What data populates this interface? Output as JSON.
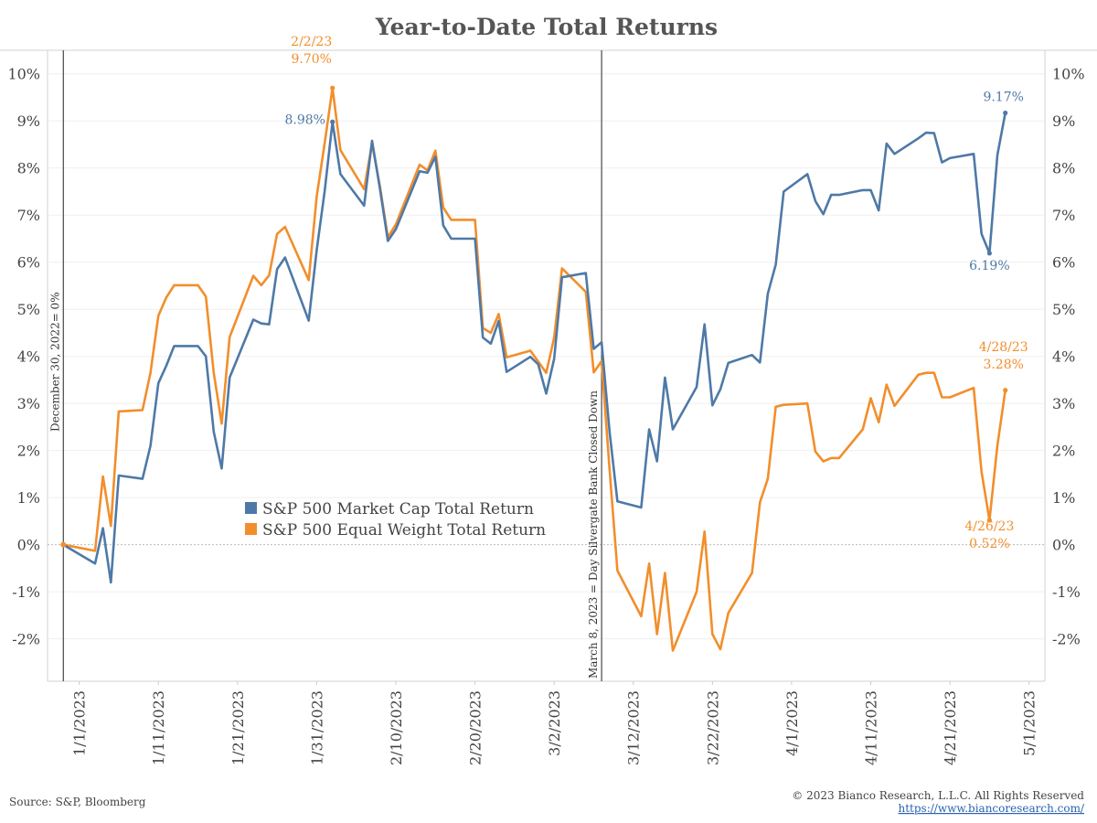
{
  "title": "Year-to-Date Total Returns",
  "source": "Source: S&P, Bloomberg",
  "copyright": "© 2023 Bianco Research, L.L.C. All Rights Reserved",
  "website": "https://www.biancoresearch.com/",
  "colors": {
    "blue": "#4e79a7",
    "orange": "#f28e2b"
  },
  "chart_data": {
    "type": "line",
    "x_axis": {
      "type": "date",
      "range": [
        "2022-12-28",
        "2023-05-03"
      ],
      "ticks": [
        "2023-01-01",
        "2023-01-11",
        "2023-01-21",
        "2023-01-31",
        "2023-02-10",
        "2023-02-20",
        "2023-03-02",
        "2023-03-12",
        "2023-03-22",
        "2023-04-01",
        "2023-04-11",
        "2023-04-21",
        "2023-05-01"
      ],
      "tick_labels": [
        "1/1/2023",
        "1/11/2023",
        "1/21/2023",
        "1/31/2023",
        "2/10/2023",
        "2/20/2023",
        "3/2/2023",
        "3/12/2023",
        "3/22/2023",
        "4/1/2023",
        "4/11/2023",
        "4/21/2023",
        "5/1/2023"
      ]
    },
    "y_axis": {
      "range": [
        -2.9,
        10.5
      ],
      "ticks": [
        -2,
        -1,
        0,
        1,
        2,
        3,
        4,
        5,
        6,
        7,
        8,
        9,
        10
      ],
      "tick_labels": [
        "-2%",
        "-1%",
        "0%",
        "1%",
        "2%",
        "3%",
        "4%",
        "5%",
        "6%",
        "7%",
        "8%",
        "9%",
        "10%"
      ],
      "sides": "both"
    },
    "grid": true,
    "legend": {
      "position": "center-left"
    },
    "series": [
      {
        "name": "S&P 500 Market Cap Total Return",
        "color": "#4e79a7",
        "points": [
          [
            "2022-12-30",
            0.0
          ],
          [
            "2023-01-03",
            -0.4
          ],
          [
            "2023-01-04",
            0.35
          ],
          [
            "2023-01-05",
            -0.8
          ],
          [
            "2023-01-06",
            1.47
          ],
          [
            "2023-01-09",
            1.4
          ],
          [
            "2023-01-10",
            2.1
          ],
          [
            "2023-01-11",
            3.43
          ],
          [
            "2023-01-12",
            3.8
          ],
          [
            "2023-01-13",
            4.22
          ],
          [
            "2023-01-16",
            4.22
          ],
          [
            "2023-01-17",
            4.0
          ],
          [
            "2023-01-18",
            2.4
          ],
          [
            "2023-01-19",
            1.62
          ],
          [
            "2023-01-20",
            3.55
          ],
          [
            "2023-01-23",
            4.78
          ],
          [
            "2023-01-24",
            4.7
          ],
          [
            "2023-01-25",
            4.68
          ],
          [
            "2023-01-26",
            5.85
          ],
          [
            "2023-01-27",
            6.1
          ],
          [
            "2023-01-30",
            4.76
          ],
          [
            "2023-01-31",
            6.25
          ],
          [
            "2023-02-01",
            7.5
          ],
          [
            "2023-02-02",
            8.98
          ],
          [
            "2023-02-03",
            7.87
          ],
          [
            "2023-02-06",
            7.2
          ],
          [
            "2023-02-07",
            8.58
          ],
          [
            "2023-02-08",
            7.55
          ],
          [
            "2023-02-09",
            6.45
          ],
          [
            "2023-02-10",
            6.7
          ],
          [
            "2023-02-13",
            7.93
          ],
          [
            "2023-02-14",
            7.9
          ],
          [
            "2023-02-15",
            8.24
          ],
          [
            "2023-02-16",
            6.78
          ],
          [
            "2023-02-17",
            6.5
          ],
          [
            "2023-02-20",
            6.5
          ],
          [
            "2023-02-21",
            4.4
          ],
          [
            "2023-02-22",
            4.27
          ],
          [
            "2023-02-23",
            4.75
          ],
          [
            "2023-02-24",
            3.67
          ],
          [
            "2023-02-27",
            3.99
          ],
          [
            "2023-02-28",
            3.83
          ],
          [
            "2023-03-01",
            3.21
          ],
          [
            "2023-03-02",
            3.95
          ],
          [
            "2023-03-03",
            5.68
          ],
          [
            "2023-03-06",
            5.77
          ],
          [
            "2023-03-07",
            4.16
          ],
          [
            "2023-03-08",
            4.3
          ],
          [
            "2023-03-09",
            2.4
          ],
          [
            "2023-03-10",
            0.92
          ],
          [
            "2023-03-13",
            0.79
          ],
          [
            "2023-03-14",
            2.45
          ],
          [
            "2023-03-15",
            1.77
          ],
          [
            "2023-03-16",
            3.55
          ],
          [
            "2023-03-17",
            2.45
          ],
          [
            "2023-03-20",
            3.35
          ],
          [
            "2023-03-21",
            4.68
          ],
          [
            "2023-03-22",
            2.96
          ],
          [
            "2023-03-23",
            3.3
          ],
          [
            "2023-03-24",
            3.86
          ],
          [
            "2023-03-27",
            4.03
          ],
          [
            "2023-03-28",
            3.87
          ],
          [
            "2023-03-29",
            5.33
          ],
          [
            "2023-03-30",
            5.95
          ],
          [
            "2023-03-31",
            7.5
          ],
          [
            "2023-04-03",
            7.87
          ],
          [
            "2023-04-04",
            7.3
          ],
          [
            "2023-04-05",
            7.02
          ],
          [
            "2023-04-06",
            7.43
          ],
          [
            "2023-04-07",
            7.43
          ],
          [
            "2023-04-10",
            7.53
          ],
          [
            "2023-04-11",
            7.53
          ],
          [
            "2023-04-12",
            7.1
          ],
          [
            "2023-04-13",
            8.52
          ],
          [
            "2023-04-14",
            8.3
          ],
          [
            "2023-04-17",
            8.63
          ],
          [
            "2023-04-18",
            8.75
          ],
          [
            "2023-04-19",
            8.74
          ],
          [
            "2023-04-20",
            8.12
          ],
          [
            "2023-04-21",
            8.21
          ],
          [
            "2023-04-24",
            8.3
          ],
          [
            "2023-04-25",
            6.6
          ],
          [
            "2023-04-26",
            6.19
          ],
          [
            "2023-04-27",
            8.27
          ],
          [
            "2023-04-28",
            9.17
          ]
        ]
      },
      {
        "name": "S&P 500 Equal Weight Total Return",
        "color": "#f28e2b",
        "points": [
          [
            "2022-12-30",
            0.0
          ],
          [
            "2023-01-03",
            -0.13
          ],
          [
            "2023-01-04",
            1.45
          ],
          [
            "2023-01-05",
            0.4
          ],
          [
            "2023-01-06",
            2.83
          ],
          [
            "2023-01-09",
            2.86
          ],
          [
            "2023-01-10",
            3.65
          ],
          [
            "2023-01-11",
            4.86
          ],
          [
            "2023-01-12",
            5.25
          ],
          [
            "2023-01-13",
            5.51
          ],
          [
            "2023-01-16",
            5.51
          ],
          [
            "2023-01-17",
            5.27
          ],
          [
            "2023-01-18",
            3.65
          ],
          [
            "2023-01-19",
            2.57
          ],
          [
            "2023-01-20",
            4.41
          ],
          [
            "2023-01-23",
            5.71
          ],
          [
            "2023-01-24",
            5.51
          ],
          [
            "2023-01-25",
            5.72
          ],
          [
            "2023-01-26",
            6.6
          ],
          [
            "2023-01-27",
            6.75
          ],
          [
            "2023-01-30",
            5.62
          ],
          [
            "2023-01-31",
            7.39
          ],
          [
            "2023-02-01",
            8.52
          ],
          [
            "2023-02-02",
            9.7
          ],
          [
            "2023-02-03",
            8.38
          ],
          [
            "2023-02-06",
            7.55
          ],
          [
            "2023-02-07",
            8.52
          ],
          [
            "2023-02-08",
            7.6
          ],
          [
            "2023-02-09",
            6.53
          ],
          [
            "2023-02-10",
            6.8
          ],
          [
            "2023-02-13",
            8.07
          ],
          [
            "2023-02-14",
            7.95
          ],
          [
            "2023-02-15",
            8.37
          ],
          [
            "2023-02-16",
            7.16
          ],
          [
            "2023-02-17",
            6.9
          ],
          [
            "2023-02-20",
            6.9
          ],
          [
            "2023-02-21",
            4.6
          ],
          [
            "2023-02-22",
            4.5
          ],
          [
            "2023-02-23",
            4.9
          ],
          [
            "2023-02-24",
            3.98
          ],
          [
            "2023-02-27",
            4.12
          ],
          [
            "2023-02-28",
            3.89
          ],
          [
            "2023-03-01",
            3.65
          ],
          [
            "2023-03-02",
            4.4
          ],
          [
            "2023-03-03",
            5.87
          ],
          [
            "2023-03-06",
            5.37
          ],
          [
            "2023-03-07",
            3.66
          ],
          [
            "2023-03-08",
            3.9
          ],
          [
            "2023-03-09",
            1.6
          ],
          [
            "2023-03-10",
            -0.55
          ],
          [
            "2023-03-13",
            -1.52
          ],
          [
            "2023-03-14",
            -0.4
          ],
          [
            "2023-03-15",
            -1.9
          ],
          [
            "2023-03-16",
            -0.6
          ],
          [
            "2023-03-17",
            -2.25
          ],
          [
            "2023-03-20",
            -1.0
          ],
          [
            "2023-03-21",
            0.28
          ],
          [
            "2023-03-22",
            -1.9
          ],
          [
            "2023-03-23",
            -2.22
          ],
          [
            "2023-03-24",
            -1.45
          ],
          [
            "2023-03-27",
            -0.6
          ],
          [
            "2023-03-28",
            0.9
          ],
          [
            "2023-03-29",
            1.4
          ],
          [
            "2023-03-30",
            2.93
          ],
          [
            "2023-03-31",
            2.97
          ],
          [
            "2023-04-03",
            3.0
          ],
          [
            "2023-04-04",
            1.98
          ],
          [
            "2023-04-05",
            1.77
          ],
          [
            "2023-04-06",
            1.84
          ],
          [
            "2023-04-07",
            1.84
          ],
          [
            "2023-04-10",
            2.45
          ],
          [
            "2023-04-11",
            3.11
          ],
          [
            "2023-04-12",
            2.6
          ],
          [
            "2023-04-13",
            3.4
          ],
          [
            "2023-04-14",
            2.95
          ],
          [
            "2023-04-17",
            3.61
          ],
          [
            "2023-04-18",
            3.65
          ],
          [
            "2023-04-19",
            3.65
          ],
          [
            "2023-04-20",
            3.13
          ],
          [
            "2023-04-21",
            3.13
          ],
          [
            "2023-04-24",
            3.33
          ],
          [
            "2023-04-25",
            1.55
          ],
          [
            "2023-04-26",
            0.52
          ],
          [
            "2023-04-27",
            2.1
          ],
          [
            "2023-04-28",
            3.28
          ]
        ]
      }
    ],
    "event_lines": [
      {
        "date": "2022-12-30",
        "label": "December 30, 2022= 0%"
      },
      {
        "date": "2023-03-08",
        "label": "March 8, 2023 = Day Silvergate Bank Closed Down"
      }
    ],
    "annotations": [
      {
        "series": 1,
        "date": "2023-02-02",
        "value": 9.7,
        "date_label": "2/2/23",
        "value_label": "9.70%"
      },
      {
        "series": 0,
        "date": "2023-02-02",
        "value": 8.98,
        "date_label": "",
        "value_label": "8.98%"
      },
      {
        "series": 0,
        "date": "2023-04-28",
        "value": 9.17,
        "date_label": "",
        "value_label": "9.17%"
      },
      {
        "series": 0,
        "date": "2023-04-26",
        "value": 6.19,
        "date_label": "",
        "value_label": "6.19%"
      },
      {
        "series": 1,
        "date": "2023-04-28",
        "value": 3.28,
        "date_label": "4/28/23",
        "value_label": "3.28%"
      },
      {
        "series": 1,
        "date": "2023-04-26",
        "value": 0.52,
        "date_label": "4/26/23",
        "value_label": "0.52%"
      }
    ]
  }
}
